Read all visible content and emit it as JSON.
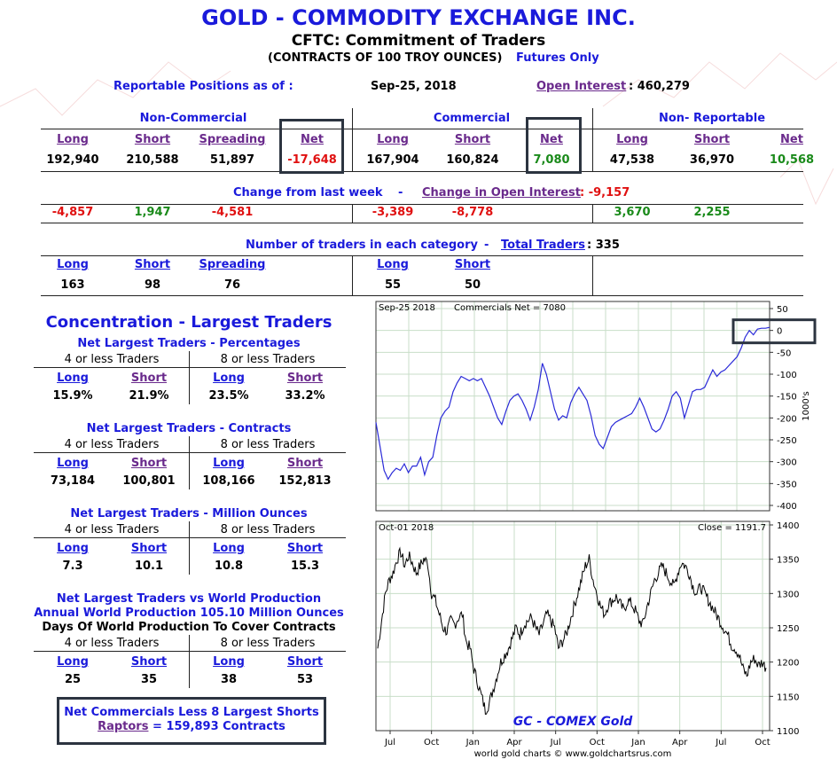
{
  "header": {
    "title": "GOLD - COMMODITY EXCHANGE INC.",
    "subtitle": "CFTC: Commitment of Traders",
    "contracts_note": "(CONTRACTS OF 100 TROY OUNCES)",
    "futures_only": "Futures Only"
  },
  "positions": {
    "label": "Reportable Positions as of :",
    "date": "Sep-25, 2018",
    "open_interest_label": "Open Interest",
    "open_interest_value": ": 460,279"
  },
  "groups": {
    "non_commercial": "Non-Commercial",
    "commercial": "Commercial",
    "non_reportable": "Non- Reportable"
  },
  "columns": {
    "long": "Long",
    "short": "Short",
    "spreading": "Spreading",
    "net": "Net"
  },
  "values": {
    "nc_long": "192,940",
    "nc_short": "210,588",
    "nc_spreading": "51,897",
    "nc_net": "-17,648",
    "c_long": "167,904",
    "c_short": "160,824",
    "c_net": "7,080",
    "nr_long": "47,538",
    "nr_short": "36,970",
    "nr_net": "10,568"
  },
  "change": {
    "label": "Change from last week",
    "dash": "-",
    "oi_label": "Change in Open Interest",
    "oi_value": ": -9,157",
    "nc_long": "-4,857",
    "nc_short": "1,947",
    "nc_spreading": "-4,581",
    "c_long": "-3,389",
    "c_short": "-8,778",
    "nr_long": "3,670",
    "nr_short": "2,255"
  },
  "traders": {
    "label": "Number of traders in each category",
    "dash": "-",
    "total_label": "Total Traders",
    "total_value": ": 335",
    "nc_long": "163",
    "nc_short": "98",
    "nc_spreading": "76",
    "c_long": "55",
    "c_short": "50"
  },
  "concentration": {
    "title": "Concentration - Largest Traders",
    "four_or_less": "4 or less Traders",
    "eight_or_less": "8 or less Traders",
    "percentages": {
      "title": "Net Largest Traders - Percentages",
      "v": [
        "15.9%",
        "21.9%",
        "23.5%",
        "33.2%"
      ]
    },
    "contracts": {
      "title": "Net Largest Traders - Contracts",
      "v": [
        "73,184",
        "100,801",
        "108,166",
        "152,813"
      ]
    },
    "million_ounces": {
      "title": "Net Largest Traders - Million Ounces",
      "v": [
        "7.3",
        "10.1",
        "10.8",
        "15.3"
      ]
    },
    "world": {
      "title1": "Net Largest Traders vs World Production",
      "title2": "Annual World Production 105.10 Million Ounces",
      "title3": "Days Of World Production To Cover Contracts",
      "v": [
        "25",
        "35",
        "38",
        "53"
      ]
    }
  },
  "raptors": {
    "line1": "Net Commercials Less 8 Largest Shorts",
    "link": "Raptors",
    "line2": "= 159,893 Contracts"
  },
  "chart_data": [
    {
      "type": "line",
      "title": "Commercials Net = 7080",
      "date_label": "Sep-25  2018",
      "ylabel": "1000's",
      "ylim": [
        -400,
        50
      ],
      "yticks": [
        "50",
        "0",
        "-50",
        "-100",
        "-150",
        "-200",
        "-250",
        "-300",
        "-350",
        "-400"
      ],
      "color": "#2a2ad8",
      "values": [
        -210,
        -265,
        -320,
        -340,
        -325,
        -315,
        -320,
        -305,
        -325,
        -310,
        -310,
        -290,
        -330,
        -300,
        -290,
        -240,
        -200,
        -185,
        -175,
        -140,
        -120,
        -105,
        -110,
        -115,
        -110,
        -115,
        -110,
        -130,
        -150,
        -175,
        -200,
        -215,
        -185,
        -160,
        -150,
        -145,
        -160,
        -180,
        -205,
        -175,
        -135,
        -75,
        -100,
        -140,
        -180,
        -205,
        -195,
        -200,
        -165,
        -145,
        -130,
        -145,
        -160,
        -195,
        -240,
        -260,
        -270,
        -245,
        -220,
        -210,
        -205,
        -200,
        -195,
        -190,
        -175,
        -155,
        -175,
        -200,
        -225,
        -232,
        -225,
        -205,
        -180,
        -150,
        -140,
        -155,
        -200,
        -170,
        -140,
        -135,
        -135,
        -130,
        -110,
        -90,
        -105,
        -95,
        -90,
        -80,
        -70,
        -60,
        -40,
        -15,
        0,
        -10,
        3,
        5,
        5,
        7
      ]
    },
    {
      "type": "line",
      "title": "GC - COMEX Gold",
      "date_label": "Oct-01  2018",
      "close_label": "Close = 1191.7",
      "ylim": [
        1100,
        1400
      ],
      "yticks": [
        "1400",
        "1350",
        "1300",
        "1250",
        "1200",
        "1150",
        "1100"
      ],
      "xticks": [
        "Jul",
        "Oct",
        "Jan",
        "Apr",
        "Jul",
        "Oct",
        "Jan",
        "Apr",
        "Jul",
        "Oct"
      ],
      "footer": "world gold charts © www.goldchartsrus.com",
      "values": [
        1220,
        1260,
        1300,
        1320,
        1330,
        1350,
        1360,
        1340,
        1355,
        1345,
        1330,
        1340,
        1350,
        1345,
        1300,
        1290,
        1270,
        1250,
        1245,
        1260,
        1255,
        1265,
        1270,
        1230,
        1220,
        1190,
        1170,
        1150,
        1130,
        1140,
        1160,
        1180,
        1200,
        1210,
        1220,
        1235,
        1250,
        1240,
        1255,
        1260,
        1265,
        1250,
        1240,
        1255,
        1270,
        1260,
        1250,
        1220,
        1230,
        1240,
        1260,
        1280,
        1300,
        1320,
        1340,
        1350,
        1320,
        1300,
        1280,
        1270,
        1285,
        1290,
        1295,
        1285,
        1275,
        1290,
        1285,
        1275,
        1260,
        1255,
        1280,
        1300,
        1320,
        1330,
        1340,
        1330,
        1320,
        1310,
        1330,
        1345,
        1340,
        1330,
        1310,
        1300,
        1310,
        1300,
        1290,
        1280,
        1270,
        1260,
        1250,
        1240,
        1225,
        1220,
        1210,
        1190,
        1180,
        1200,
        1205,
        1195,
        1200,
        1191.7
      ]
    }
  ]
}
